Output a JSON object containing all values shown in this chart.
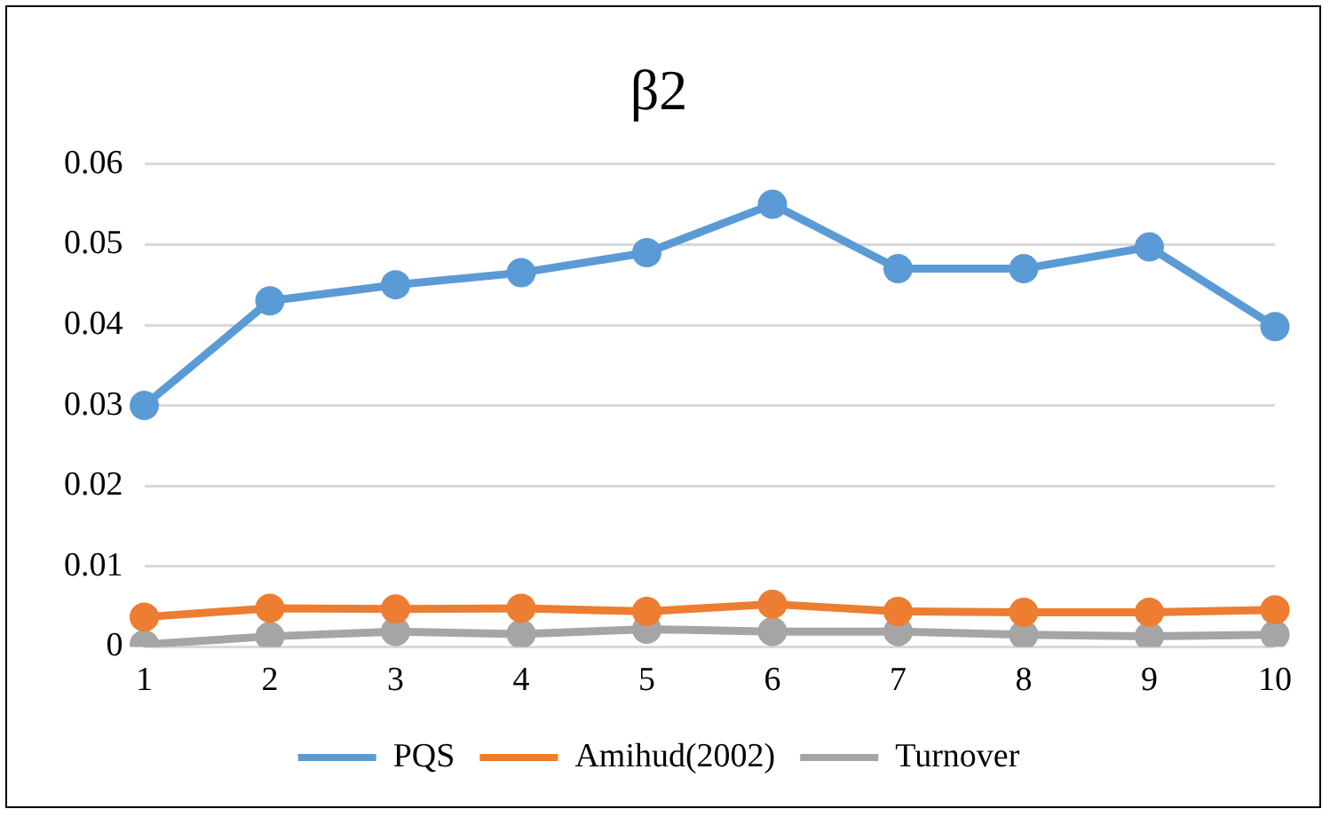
{
  "chart_data": {
    "type": "line",
    "title": "β2",
    "categories": [
      "1",
      "2",
      "3",
      "4",
      "5",
      "6",
      "7",
      "8",
      "9",
      "10"
    ],
    "series": [
      {
        "name": "PQS",
        "color": "#5b9bd5",
        "values": [
          0.03,
          0.043,
          0.045,
          0.0465,
          0.049,
          0.055,
          0.047,
          0.047,
          0.0497,
          0.0398
        ]
      },
      {
        "name": "Amihud(2002)",
        "color": "#ed7d31",
        "values": [
          0.0037,
          0.0048,
          0.0047,
          0.0048,
          0.0044,
          0.0053,
          0.0044,
          0.0043,
          0.0043,
          0.0046
        ]
      },
      {
        "name": "Turnover",
        "color": "#a5a5a5",
        "values": [
          0.0003,
          0.0013,
          0.0019,
          0.0016,
          0.0022,
          0.0019,
          0.0019,
          0.0015,
          0.0013,
          0.0015
        ]
      }
    ],
    "ylim": [
      0,
      0.06
    ],
    "yticks": [
      0,
      0.01,
      0.02,
      0.03,
      0.04,
      0.05,
      0.06
    ],
    "grid": "y",
    "legend": "bottom",
    "marker": "circle",
    "line_style": "solid"
  }
}
